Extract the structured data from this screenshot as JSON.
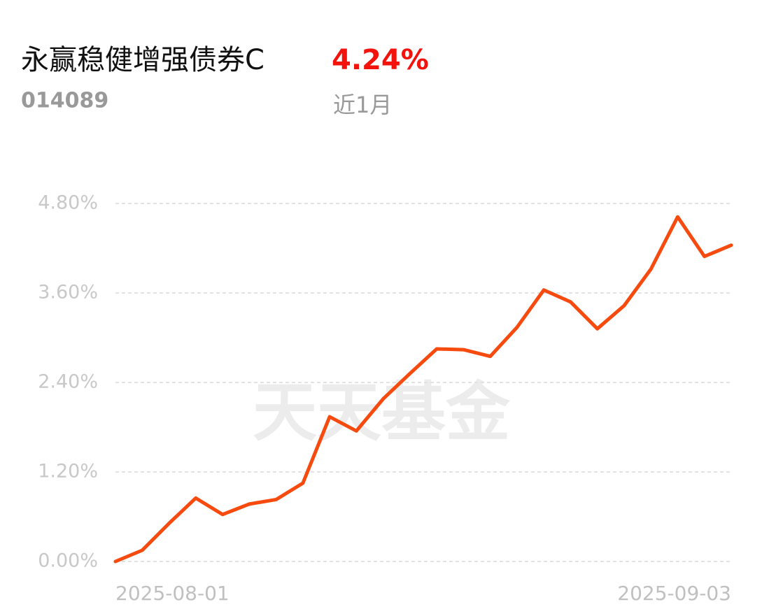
{
  "chart_data": {
    "type": "line",
    "title": "永赢稳健增强债券C",
    "code": "014089",
    "return_label": "4.24%",
    "period": "近1月",
    "watermark": "天天基金",
    "categories": [
      "2025-08-01",
      null,
      null,
      null,
      null,
      null,
      null,
      null,
      null,
      null,
      null,
      null,
      null,
      null,
      null,
      null,
      null,
      null,
      null,
      null,
      null,
      null,
      null,
      "2025-09-03"
    ],
    "series": [
      {
        "color": "#f74a0f",
        "values": [
          0,
          0.15,
          0.51,
          0.85,
          0.63,
          0.77,
          0.83,
          1.05,
          1.94,
          1.75,
          2.18,
          2.52,
          2.85,
          2.84,
          2.75,
          3.14,
          3.64,
          3.48,
          3.12,
          3.43,
          3.92,
          4.62,
          4.09,
          4.24
        ]
      }
    ],
    "ylim": [
      0,
      4.8
    ],
    "yticks": [
      {
        "value": 0,
        "label": "0.00%"
      },
      {
        "value": 1.2,
        "label": "1.20%"
      },
      {
        "value": 2.4,
        "label": "2.40%"
      },
      {
        "value": 3.6,
        "label": "3.60%"
      },
      {
        "value": 4.8,
        "label": "4.80%"
      }
    ],
    "grid": true
  }
}
